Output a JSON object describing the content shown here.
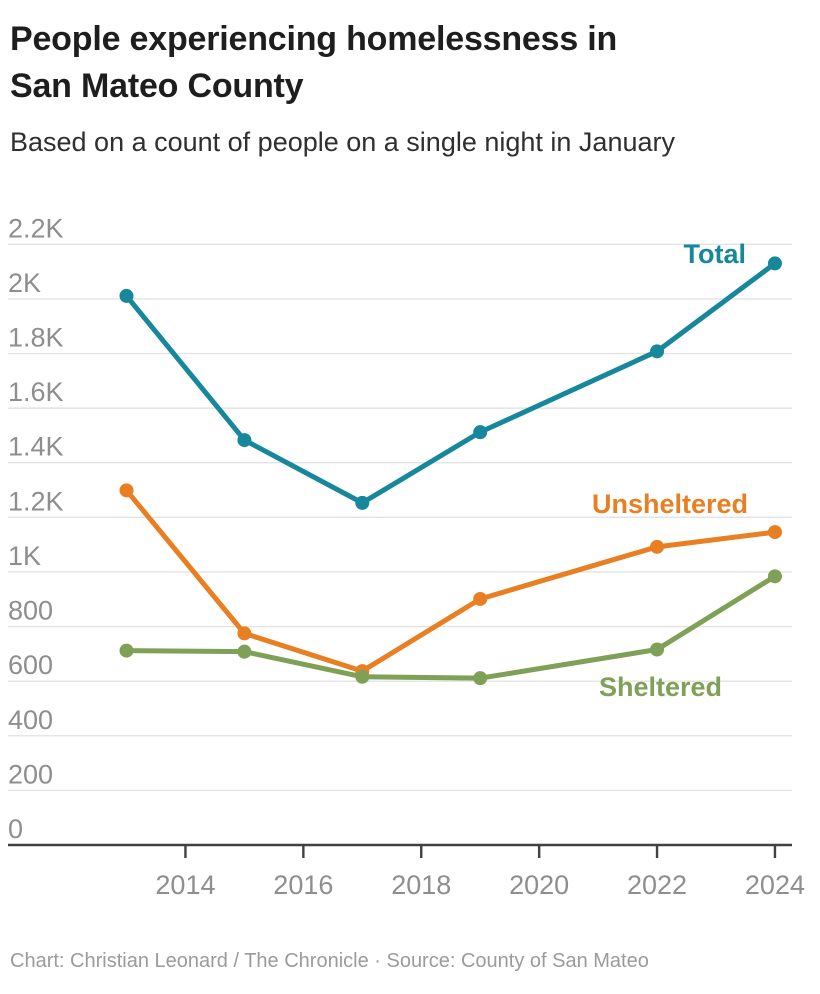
{
  "header": {
    "title_lines": [
      "People experiencing homelessness in",
      "San Mateo County"
    ],
    "subtitle": "Based on a count of people on a single night in January"
  },
  "footer": {
    "credit": "Chart: Christian Leonard / The Chronicle · Source: County of San Mateo"
  },
  "colors": {
    "total": "#17879b",
    "unsheltered": "#e87f22",
    "sheltered": "#7fa057",
    "grid": "#e3e3e3",
    "axis": "#414141",
    "tick_label": "#8e8e8e",
    "background": "#ffffff"
  },
  "chart_data": {
    "type": "line",
    "x": [
      2013,
      2015,
      2017,
      2019,
      2022,
      2024
    ],
    "series": [
      {
        "name": "Total",
        "label": "Total",
        "color_key": "total",
        "values": [
          2011,
          1483,
          1253,
          1512,
          1808,
          2130
        ]
      },
      {
        "name": "Unsheltered",
        "label": "Unsheltered",
        "color_key": "unsheltered",
        "values": [
          1299,
          775,
          637,
          901,
          1092,
          1146
        ]
      },
      {
        "name": "Sheltered",
        "label": "Sheltered",
        "color_key": "sheltered",
        "values": [
          712,
          708,
          616,
          611,
          716,
          984
        ]
      }
    ],
    "y_ticks": [
      {
        "value": 0,
        "label": "0"
      },
      {
        "value": 200,
        "label": "200"
      },
      {
        "value": 400,
        "label": "400"
      },
      {
        "value": 600,
        "label": "600"
      },
      {
        "value": 800,
        "label": "800"
      },
      {
        "value": 1000,
        "label": "1K"
      },
      {
        "value": 1200,
        "label": "1.2K"
      },
      {
        "value": 1400,
        "label": "1.4K"
      },
      {
        "value": 1600,
        "label": "1.6K"
      },
      {
        "value": 1800,
        "label": "1.8K"
      },
      {
        "value": 2000,
        "label": "2K"
      },
      {
        "value": 2200,
        "label": "2.2K"
      }
    ],
    "x_ticks": [
      2014,
      2016,
      2018,
      2020,
      2022,
      2024
    ],
    "ylim": [
      0,
      2200
    ],
    "xlim": [
      2011,
      2024.3
    ],
    "grid": true,
    "legend": "inline-labels",
    "markers": true
  }
}
